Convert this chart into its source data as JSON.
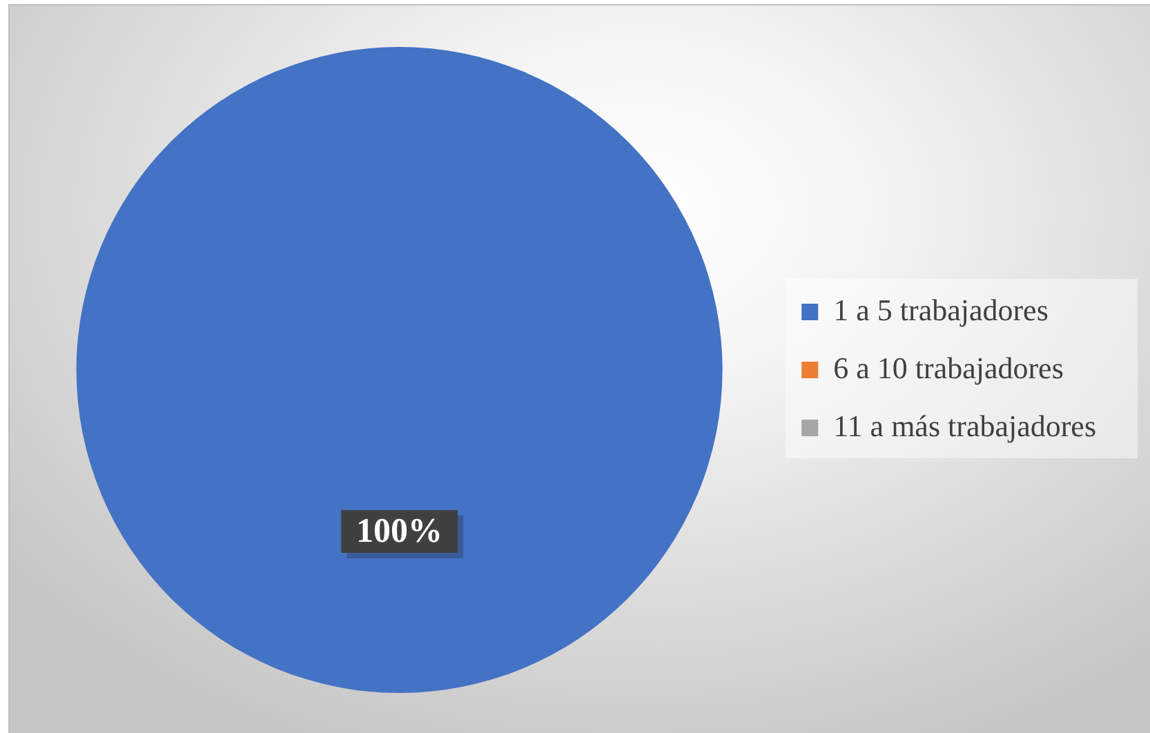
{
  "chart_data": {
    "type": "pie",
    "categories": [
      "1 a 5 trabajadores",
      "6 a 10 trabajadores",
      "11 a más trabajadores"
    ],
    "values": [
      100,
      0,
      0
    ],
    "colors": [
      "#4472c4",
      "#ed7d31",
      "#a5a5a5"
    ],
    "value_labels": [
      "100%",
      null,
      null
    ],
    "legend": "right"
  }
}
